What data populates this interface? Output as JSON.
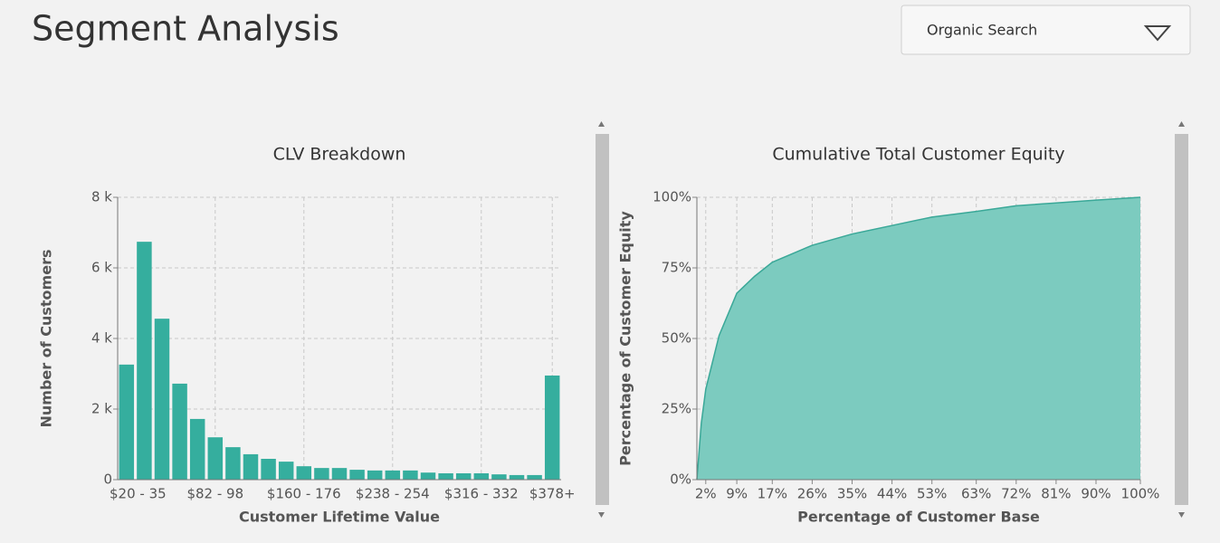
{
  "header": {
    "title": "Segment Analysis"
  },
  "dropdown": {
    "selected": "Organic Search"
  },
  "chart_data": [
    {
      "type": "bar",
      "title": "CLV Breakdown",
      "x_label": "Customer Lifetime Value",
      "y_label": "Number of Customers",
      "categories": [
        "$20 - 35",
        null,
        null,
        null,
        null,
        "$82 - 98",
        null,
        null,
        null,
        null,
        "$160 - 176",
        null,
        null,
        null,
        null,
        "$238 - 254",
        null,
        null,
        null,
        null,
        "$316 - 332",
        null,
        null,
        null,
        "$378+"
      ],
      "values": [
        3260,
        6740,
        4560,
        2720,
        1720,
        1200,
        920,
        720,
        590,
        510,
        380,
        330,
        330,
        280,
        260,
        260,
        260,
        200,
        180,
        180,
        180,
        150,
        130,
        130,
        2950
      ],
      "color": "#35ae9e",
      "ylim": [
        0,
        8000
      ],
      "yticks": [
        0,
        {
          "value": 2000,
          "label": "2 k"
        },
        {
          "value": 4000,
          "label": "4 k"
        },
        {
          "value": 6000,
          "label": "6 k"
        },
        {
          "value": 8000,
          "label": "8 k"
        }
      ],
      "grid": true
    },
    {
      "type": "area",
      "title": "Cumulative Total Customer Equity",
      "x_label": "Percentage of Customer Base",
      "y_label": "Percentage of Customer Equity",
      "x": [
        0,
        1,
        2,
        5,
        9,
        13,
        17,
        26,
        35,
        44,
        53,
        63,
        72,
        81,
        90,
        100
      ],
      "values": [
        0,
        20,
        32,
        51,
        66,
        72,
        77,
        83,
        87,
        90,
        93,
        95,
        97,
        98,
        99,
        100
      ],
      "color": "#7ccbbf",
      "line_color": "#3aa898",
      "xlim": [
        0,
        100
      ],
      "xticks": [
        {
          "value": 2,
          "label": "2%"
        },
        {
          "value": 9,
          "label": "9%"
        },
        {
          "value": 17,
          "label": "17%"
        },
        {
          "value": 26,
          "label": "26%"
        },
        {
          "value": 35,
          "label": "35%"
        },
        {
          "value": 44,
          "label": "44%"
        },
        {
          "value": 53,
          "label": "53%"
        },
        {
          "value": 63,
          "label": "63%"
        },
        {
          "value": 72,
          "label": "72%"
        },
        {
          "value": 81,
          "label": "81%"
        },
        {
          "value": 90,
          "label": "90%"
        },
        {
          "value": 100,
          "label": "100%"
        }
      ],
      "ylim": [
        0,
        100
      ],
      "yticks": [
        {
          "value": 0,
          "label": "0%"
        },
        {
          "value": 25,
          "label": "25%"
        },
        {
          "value": 50,
          "label": "50%"
        },
        {
          "value": 75,
          "label": "75%"
        },
        {
          "value": 100,
          "label": "100%"
        }
      ],
      "grid": true
    }
  ]
}
